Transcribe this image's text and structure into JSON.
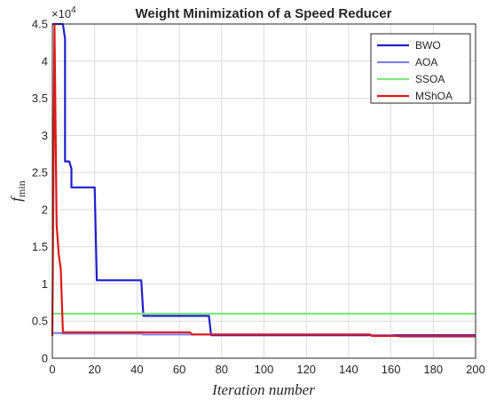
{
  "chart_data": {
    "type": "line",
    "title": "Weight Minimization of a Speed Reducer",
    "xlabel": "Iteration   number",
    "ylabel_main": "f",
    "ylabel_sub": "min",
    "y_exponent_base": "×10",
    "y_exponent_power": "4",
    "xlim": [
      0,
      200
    ],
    "ylim": [
      0,
      4.5
    ],
    "y_multiplier": 10000,
    "grid": true,
    "legend_position": "top-right",
    "xticks": [
      "0",
      "20",
      "40",
      "60",
      "80",
      "100",
      "120",
      "140",
      "160",
      "180",
      "200"
    ],
    "yticks": [
      "0",
      "0.5",
      "1",
      "1.5",
      "2",
      "2.5",
      "3",
      "3.5",
      "4",
      "4.5"
    ],
    "series": [
      {
        "name": "BWO",
        "color": "#1f1fcc",
        "points": [
          [
            0,
            4.5
          ],
          [
            5,
            4.5
          ],
          [
            6,
            4.3
          ],
          [
            6,
            2.65
          ],
          [
            8,
            2.65
          ],
          [
            9,
            2.55
          ],
          [
            9,
            2.3
          ],
          [
            20,
            2.3
          ],
          [
            21,
            1.05
          ],
          [
            42,
            1.05
          ],
          [
            43,
            0.57
          ],
          [
            74,
            0.57
          ],
          [
            75,
            0.31
          ],
          [
            200,
            0.31
          ]
        ]
      },
      {
        "name": "AOA",
        "color": "#8080ee",
        "points": [
          [
            0,
            0.34
          ],
          [
            4,
            0.34
          ],
          [
            5,
            0.33
          ],
          [
            42,
            0.33
          ],
          [
            43,
            0.32
          ],
          [
            150,
            0.32
          ],
          [
            151,
            0.31
          ],
          [
            160,
            0.31
          ],
          [
            165,
            0.29
          ],
          [
            200,
            0.29
          ]
        ]
      },
      {
        "name": "SSOA",
        "color": "#7ee87e",
        "points": [
          [
            0,
            0.6
          ],
          [
            200,
            0.6
          ]
        ]
      },
      {
        "name": "MShOA",
        "color": "#e01818",
        "points": [
          [
            0,
            0.3
          ],
          [
            1,
            4.5
          ],
          [
            2,
            1.8
          ],
          [
            3,
            1.4
          ],
          [
            4,
            1.2
          ],
          [
            5,
            0.35
          ],
          [
            65,
            0.35
          ],
          [
            66,
            0.32
          ],
          [
            150,
            0.32
          ],
          [
            151,
            0.3
          ],
          [
            200,
            0.3
          ]
        ]
      }
    ]
  }
}
